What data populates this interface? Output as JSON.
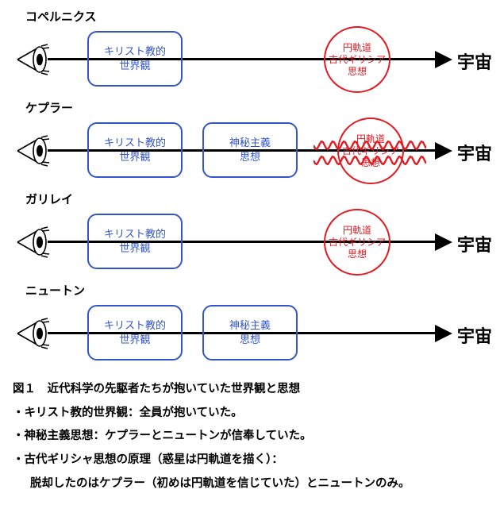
{
  "colors": {
    "blue": "#3355cc",
    "red": "#e11b22",
    "black": "#000000"
  },
  "box_blue_line_width": 2,
  "circle_red_line_width": 2,
  "arrow_line_width": 3,
  "font": {
    "label_size": 15,
    "box_size": 13,
    "circle_size": 12,
    "end_size": 22,
    "caption_size": 14.5
  },
  "end_label": "宇宙",
  "box_christian": {
    "l1": "キリスト教的",
    "l2": "世界観"
  },
  "box_mystic": {
    "l1": "神秘主義",
    "l2": "思想"
  },
  "circle_greek": {
    "l1": "円軌道",
    "l2": "古代ギリシア",
    "l3": "思想"
  },
  "rows": [
    {
      "name": "コペルニクス",
      "blueA": true,
      "blueB": false,
      "circle": "c",
      "wavy": false
    },
    {
      "name": "ケプラー",
      "blueA": true,
      "blueB": true,
      "circle": "d",
      "wavy": true
    },
    {
      "name": "ガリレイ",
      "blueA": true,
      "blueB": false,
      "circle": "c",
      "wavy": false
    },
    {
      "name": "ニュートン",
      "blueA": true,
      "blueB": true,
      "circle": null,
      "wavy": false
    }
  ],
  "caption": {
    "title": "図１　近代科学の先駆者たちが抱いていた世界観と思想",
    "b1": "・キリスト教的世界観：全員が抱いていた。",
    "b2": "・神秘主義思想：ケプラーとニュートンが信奉していた。",
    "b3": "・古代ギリシャ思想の原理（惑星は円軌道を描く）：",
    "b4": "脱却したのはケプラー（初めは円軌道を信じていた）とニュートンのみ。"
  }
}
